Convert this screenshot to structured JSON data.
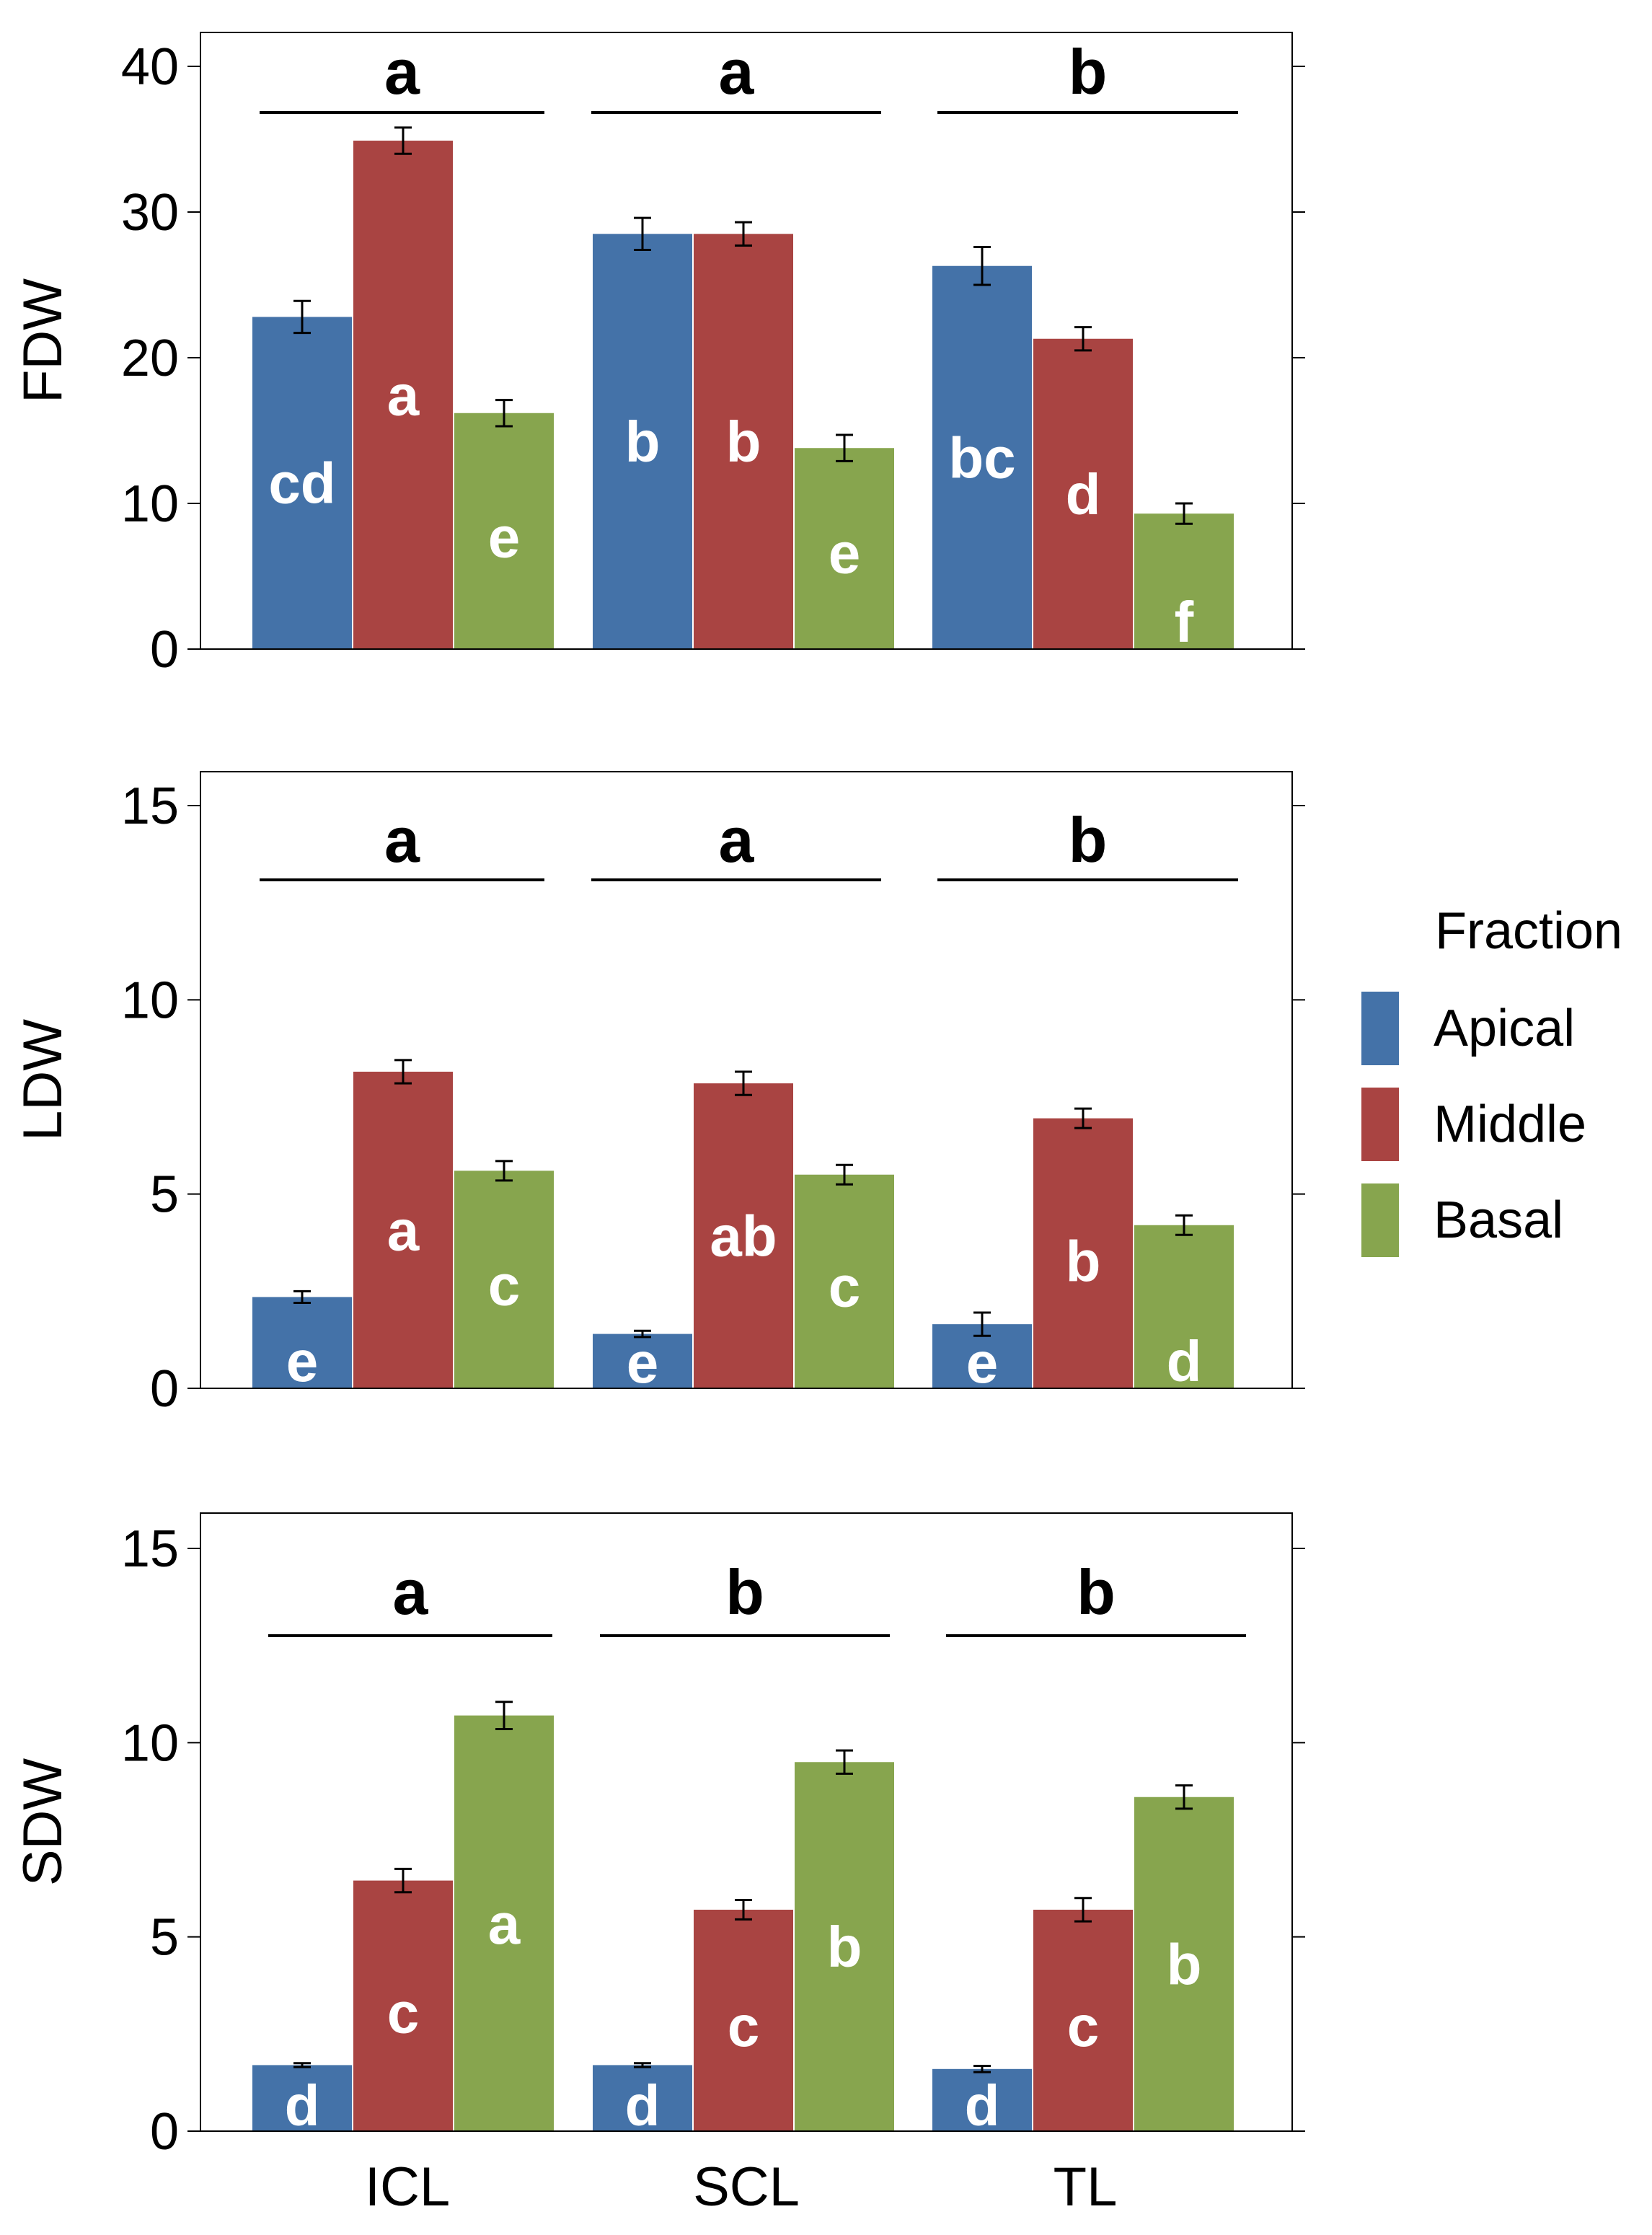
{
  "chart_data": [
    {
      "type": "bar",
      "ylabel": "FDW",
      "ylim": [
        0,
        40
      ],
      "yticks": [
        0,
        10,
        20,
        30,
        40
      ],
      "categories": [
        "ICL",
        "SCL",
        "TL"
      ],
      "group_letters": [
        "a",
        "a",
        "b"
      ],
      "series": [
        {
          "name": "Apical",
          "values": [
            22.8,
            28.5,
            26.3
          ],
          "errors": [
            1.1,
            1.1,
            1.3
          ],
          "letters": [
            "cd",
            "b",
            "bc"
          ]
        },
        {
          "name": "Middle",
          "values": [
            34.9,
            28.5,
            21.3
          ],
          "errors": [
            0.9,
            0.8,
            0.8
          ],
          "letters": [
            "a",
            "b",
            "d"
          ]
        },
        {
          "name": "Basal",
          "values": [
            16.2,
            13.8,
            9.3
          ],
          "errors": [
            0.9,
            0.9,
            0.7
          ],
          "letters": [
            "e",
            "e",
            "f"
          ]
        }
      ]
    },
    {
      "type": "bar",
      "ylabel": "LDW",
      "ylim": [
        0,
        15
      ],
      "yticks": [
        0,
        5,
        10,
        15
      ],
      "categories": [
        "ICL",
        "SCL",
        "TL"
      ],
      "group_letters": [
        "a",
        "a",
        "b"
      ],
      "series": [
        {
          "name": "Apical",
          "values": [
            2.35,
            1.4,
            1.65
          ],
          "errors": [
            0.15,
            0.08,
            0.3
          ],
          "letters": [
            "e",
            "e",
            "e"
          ]
        },
        {
          "name": "Middle",
          "values": [
            8.15,
            7.85,
            6.95
          ],
          "errors": [
            0.3,
            0.3,
            0.25
          ],
          "letters": [
            "a",
            "ab",
            "b"
          ]
        },
        {
          "name": "Basal",
          "values": [
            5.6,
            5.5,
            4.2
          ],
          "errors": [
            0.25,
            0.25,
            0.25
          ],
          "letters": [
            "c",
            "c",
            "d"
          ]
        }
      ]
    },
    {
      "type": "bar",
      "ylabel": "SDW",
      "ylim": [
        0,
        15
      ],
      "yticks": [
        0,
        5,
        10,
        15
      ],
      "categories": [
        "ICL",
        "SCL",
        "TL"
      ],
      "group_letters": [
        "a",
        "b",
        "b"
      ],
      "series": [
        {
          "name": "Apical",
          "values": [
            1.7,
            1.7,
            1.6
          ],
          "errors": [
            0.05,
            0.05,
            0.08
          ],
          "letters": [
            "d",
            "d",
            "d"
          ]
        },
        {
          "name": "Middle",
          "values": [
            6.45,
            5.7,
            5.7
          ],
          "errors": [
            0.3,
            0.25,
            0.3
          ],
          "letters": [
            "c",
            "c",
            "c"
          ]
        },
        {
          "name": "Basal",
          "values": [
            10.7,
            9.5,
            8.6
          ],
          "errors": [
            0.35,
            0.3,
            0.3
          ],
          "letters": [
            "a",
            "b",
            "b"
          ]
        }
      ]
    }
  ],
  "legend": {
    "title": "Fraction",
    "items": [
      {
        "label": "Apical",
        "color": "#4472a8"
      },
      {
        "label": "Middle",
        "color": "#a94442"
      },
      {
        "label": "Basal",
        "color": "#87a54e"
      }
    ]
  },
  "x_labels": [
    "ICL",
    "SCL",
    "TL"
  ]
}
